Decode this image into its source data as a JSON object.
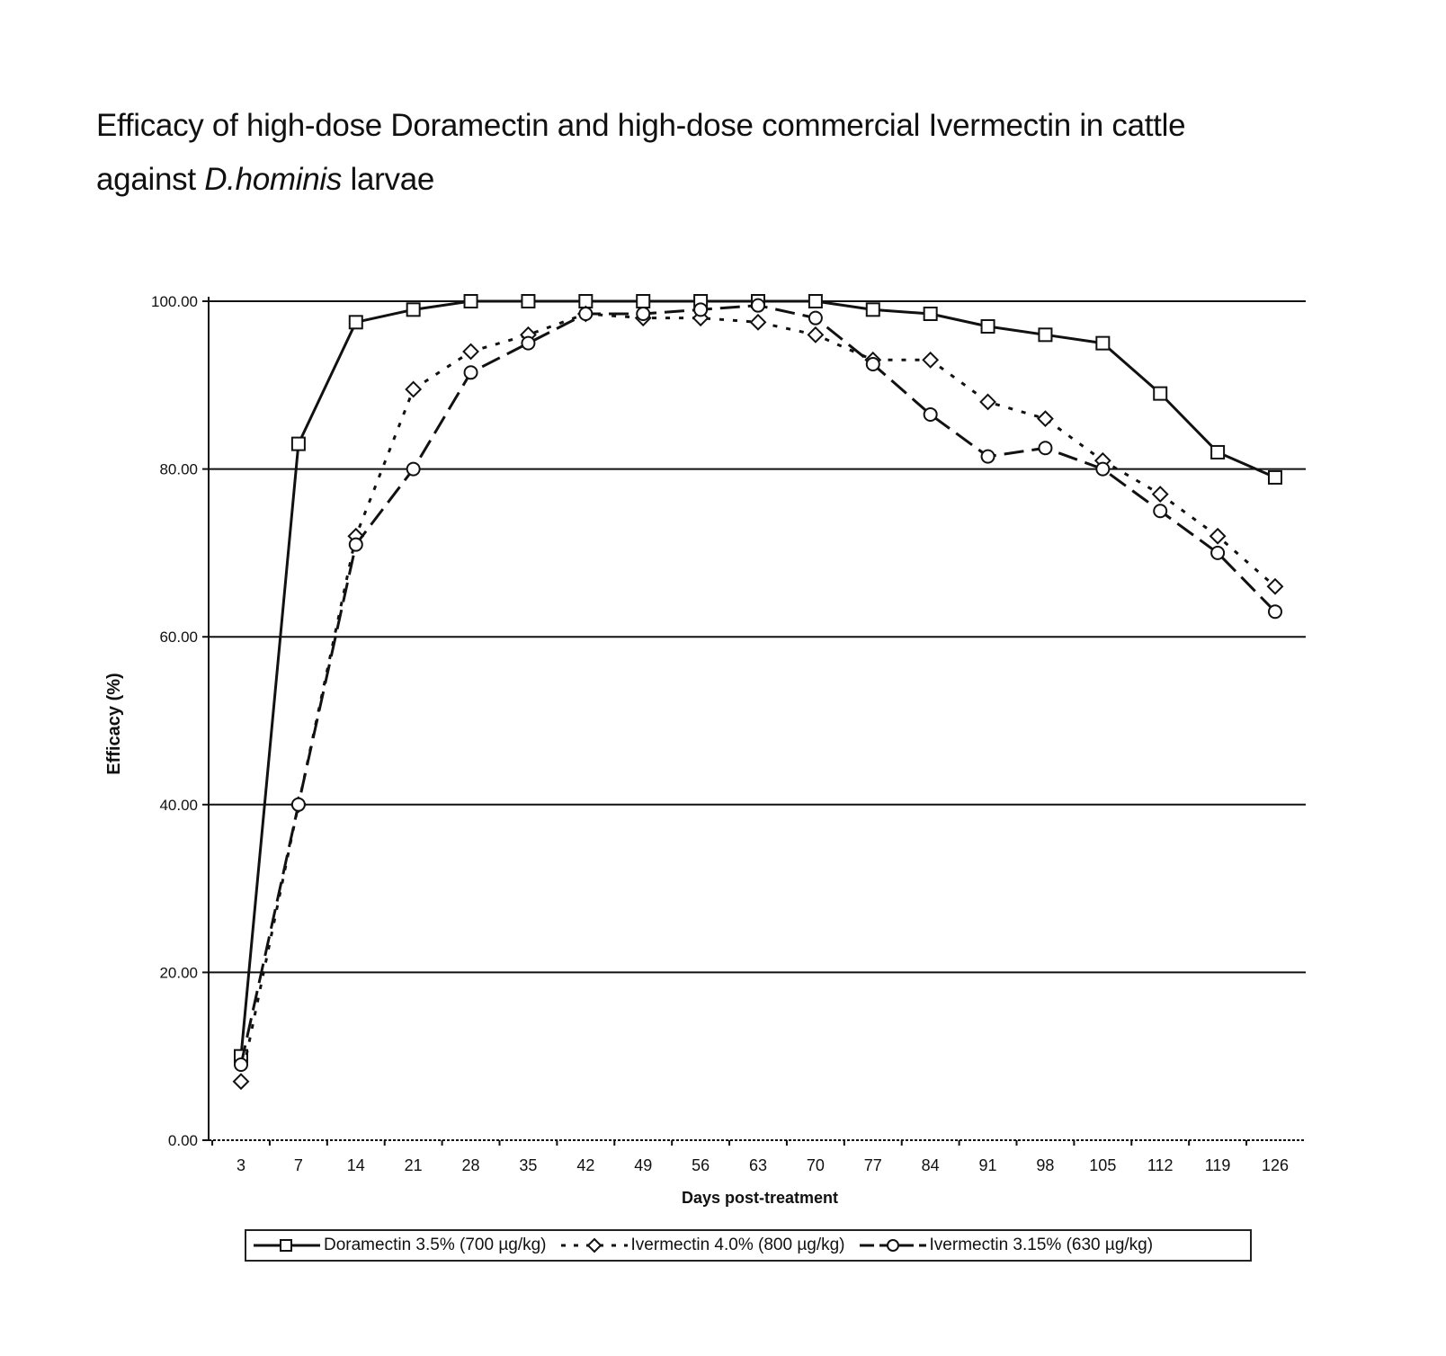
{
  "title": {
    "line1": "Efficacy of high-dose Doramectin and high-dose commercial Ivermectin in cattle",
    "line2_prefix": "against ",
    "line2_italic": "D.hominis",
    "line2_suffix": " larvae"
  },
  "chart_data": {
    "type": "line",
    "title": "Efficacy of high-dose Doramectin and high-dose commercial Ivermectin in cattle against D.hominis larvae",
    "xlabel": "Days post-treatment",
    "ylabel": "Efficacy (%)",
    "categories": [
      "3",
      "7",
      "14",
      "21",
      "28",
      "35",
      "42",
      "49",
      "56",
      "63",
      "70",
      "77",
      "84",
      "91",
      "98",
      "105",
      "112",
      "119",
      "126"
    ],
    "yticks": [
      "0.00",
      "20.00",
      "40.00",
      "60.00",
      "80.00",
      "100.00"
    ],
    "ylim": [
      0,
      100
    ],
    "grid": "horizontal",
    "legend_position": "bottom",
    "series": [
      {
        "name": "Doramectin 3.5% (700 µg/kg)",
        "marker": "square",
        "line_style": "solid",
        "values": [
          10,
          83,
          97.5,
          99,
          100,
          100,
          100,
          100,
          100,
          100,
          100,
          99,
          98.5,
          97,
          96,
          95,
          89,
          82,
          79
        ]
      },
      {
        "name": "Ivermectin 4.0% (800 µg/kg)",
        "marker": "diamond",
        "line_style": "dotted",
        "values": [
          7,
          40,
          72,
          89.5,
          94,
          96,
          98.5,
          98,
          98,
          97.5,
          96,
          93,
          93,
          88,
          86,
          81,
          77,
          72,
          66
        ]
      },
      {
        "name": "Ivermectin 3.15% (630 µg/kg)",
        "marker": "circle",
        "line_style": "dashed",
        "values": [
          9,
          40,
          71,
          80,
          91.5,
          95,
          98.5,
          98.5,
          99,
          99.5,
          98,
          92.5,
          86.5,
          81.5,
          82.5,
          80,
          75,
          70,
          63
        ]
      }
    ]
  },
  "legend": {
    "items": [
      "Doramectin 3.5% (700 µg/kg)",
      "Ivermectin 4.0% (800 µg/kg)",
      "Ivermectin 3.15% (630 µg/kg)"
    ]
  }
}
